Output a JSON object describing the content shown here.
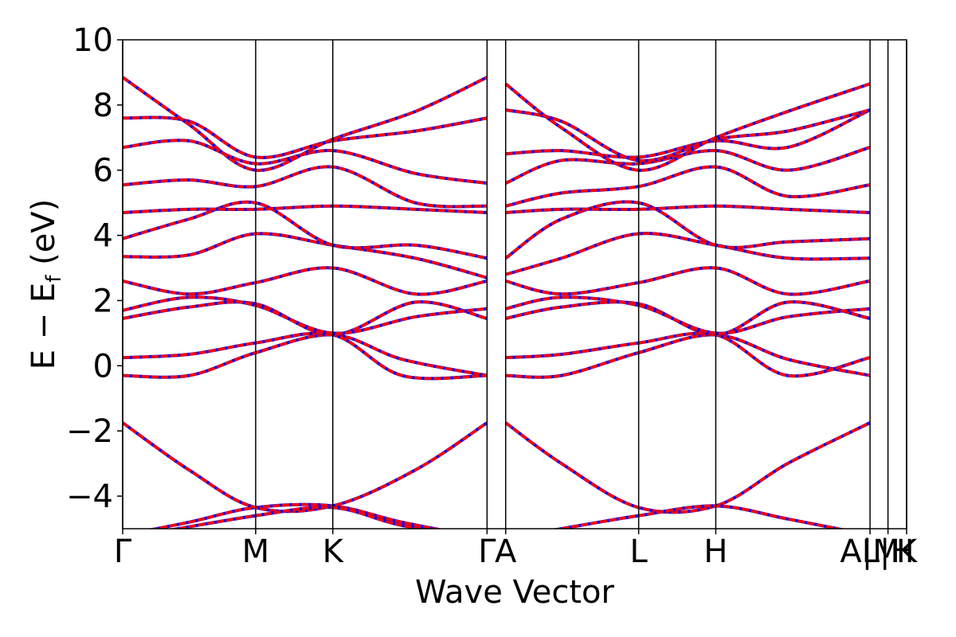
{
  "chart_data": {
    "type": "line",
    "title": "",
    "xlabel": "Wave Vector",
    "ylabel_parts": {
      "main": "E − E",
      "sub": "f",
      "unit": " (eV)"
    },
    "ylim": [
      -5,
      10
    ],
    "y_ticks": [
      {
        "value": -4,
        "label": "−4"
      },
      {
        "value": -2,
        "label": "−2"
      },
      {
        "value": 0,
        "label": "0"
      },
      {
        "value": 2,
        "label": "2"
      },
      {
        "value": 4,
        "label": "4"
      },
      {
        "value": 6,
        "label": "6"
      },
      {
        "value": 8,
        "label": "8"
      },
      {
        "value": 10,
        "label": "10"
      }
    ],
    "kpath_positions": [
      0,
      1,
      1.58,
      2.74,
      2.88,
      3.88,
      4.46,
      5.62,
      5.755,
      5.895
    ],
    "kpath_labels": [
      {
        "pos": 0,
        "label": "Γ"
      },
      {
        "pos": 1,
        "label": "M"
      },
      {
        "pos": 1.58,
        "label": "K"
      },
      {
        "pos": 2.74,
        "label": "Γ"
      },
      {
        "pos": 2.88,
        "label": "A"
      },
      {
        "pos": 3.88,
        "label": "L"
      },
      {
        "pos": 4.46,
        "label": "H"
      },
      {
        "pos": 5.62,
        "label": "A"
      },
      {
        "pos": 5.62,
        "label": "M"
      },
      {
        "pos": 5.755,
        "label": "L"
      },
      {
        "pos": 5.755,
        "label": "H"
      },
      {
        "pos": 5.895,
        "label": "K"
      }
    ],
    "grid": false,
    "legend": "none",
    "colors": {
      "band_primary": "#ff0000",
      "band_secondary": "#0000ff",
      "kpath_line": "#000000"
    },
    "series": [
      {
        "x": [
          0,
          0.5,
          1,
          1.58,
          2.1,
          2.74
        ],
        "values": [
          -5.2,
          -4.8,
          -4.35,
          -4.3,
          -4.8,
          -5.3
        ]
      },
      {
        "x": [
          0,
          0.5,
          1,
          1.58,
          2.2,
          2.74
        ],
        "values": [
          -1.75,
          -3.2,
          -4.35,
          -4.3,
          -3.2,
          -1.75
        ]
      },
      {
        "x": [
          0,
          1,
          1.58,
          2.1,
          2.74
        ],
        "values": [
          -5.3,
          -4.6,
          -4.35,
          -4.9,
          -5.3
        ]
      },
      {
        "x": [
          0,
          0.5,
          1,
          1.58,
          2.1,
          2.74
        ],
        "values": [
          -0.3,
          -0.3,
          0.4,
          0.95,
          0.2,
          -0.3
        ]
      },
      {
        "x": [
          0,
          0.5,
          1,
          1.58,
          2.1,
          2.74
        ],
        "values": [
          0.25,
          0.35,
          0.7,
          0.95,
          -0.3,
          -0.3
        ]
      },
      {
        "x": [
          0,
          0.5,
          1,
          1.58,
          2.2,
          2.74
        ],
        "values": [
          1.45,
          1.8,
          1.9,
          0.95,
          1.95,
          1.45
        ]
      },
      {
        "x": [
          0,
          0.5,
          1,
          1.58,
          2.2,
          2.74
        ],
        "values": [
          1.7,
          2.1,
          1.85,
          1.0,
          1.5,
          1.75
        ]
      },
      {
        "x": [
          0,
          0.5,
          1,
          1.58,
          2.2,
          2.74
        ],
        "values": [
          2.6,
          2.2,
          2.55,
          3.0,
          2.2,
          2.6
        ]
      },
      {
        "x": [
          0,
          0.5,
          1,
          1.58,
          2.2,
          2.74
        ],
        "values": [
          3.35,
          3.4,
          4.05,
          3.7,
          3.3,
          2.7
        ]
      },
      {
        "x": [
          0,
          0.5,
          1,
          1.58,
          2.2,
          2.74
        ],
        "values": [
          3.9,
          4.5,
          5.0,
          3.7,
          3.7,
          3.3
        ]
      },
      {
        "x": [
          0,
          0.5,
          1,
          1.58,
          2.2,
          2.74
        ],
        "values": [
          4.7,
          4.8,
          4.8,
          4.9,
          4.8,
          4.7
        ]
      },
      {
        "x": [
          0,
          0.5,
          1,
          1.58,
          2.2,
          2.74
        ],
        "values": [
          5.55,
          5.7,
          5.5,
          6.1,
          5.0,
          4.9
        ]
      },
      {
        "x": [
          0,
          0.5,
          1,
          1.58,
          2.2,
          2.74
        ],
        "values": [
          6.7,
          6.9,
          6.2,
          6.6,
          5.9,
          5.6
        ]
      },
      {
        "x": [
          0,
          0.5,
          1,
          1.58,
          2.2,
          2.74
        ],
        "values": [
          7.6,
          7.5,
          6.4,
          6.9,
          7.2,
          7.6
        ]
      },
      {
        "x": [
          0,
          0.5,
          1,
          1.58,
          2.2,
          2.74
        ],
        "values": [
          8.85,
          7.4,
          6.0,
          6.95,
          7.8,
          8.85
        ]
      },
      {
        "x": [
          2.88,
          3.3,
          3.88,
          4.46,
          5.0,
          5.62
        ],
        "values": [
          -1.75,
          -3.0,
          -4.35,
          -4.3,
          -3.0,
          -1.75
        ]
      },
      {
        "x": [
          2.88,
          3.3,
          3.88,
          4.46,
          5.0,
          5.62
        ],
        "values": [
          -5.3,
          -5.0,
          -4.6,
          -4.3,
          -4.7,
          -5.2
        ]
      },
      {
        "x": [
          2.88,
          3.3,
          3.88,
          4.46,
          5.0,
          5.62
        ],
        "values": [
          -0.3,
          -0.3,
          0.4,
          0.95,
          0.2,
          -0.3
        ]
      },
      {
        "x": [
          2.88,
          3.3,
          3.88,
          4.46,
          5.0,
          5.62
        ],
        "values": [
          0.25,
          0.35,
          0.7,
          0.95,
          -0.3,
          0.25
        ]
      },
      {
        "x": [
          2.88,
          3.3,
          3.88,
          4.46,
          5.0,
          5.62
        ],
        "values": [
          1.45,
          1.8,
          1.9,
          0.95,
          1.95,
          1.45
        ]
      },
      {
        "x": [
          2.88,
          3.3,
          3.88,
          4.46,
          5.0,
          5.62
        ],
        "values": [
          1.75,
          2.1,
          1.85,
          1.0,
          1.5,
          1.75
        ]
      },
      {
        "x": [
          2.88,
          3.3,
          3.88,
          4.46,
          5.0,
          5.62
        ],
        "values": [
          2.6,
          2.2,
          2.55,
          3.0,
          2.2,
          2.6
        ]
      },
      {
        "x": [
          2.88,
          3.3,
          3.88,
          4.46,
          5.0,
          5.62
        ],
        "values": [
          2.8,
          3.3,
          4.05,
          3.7,
          3.3,
          3.3
        ]
      },
      {
        "x": [
          2.88,
          3.3,
          3.88,
          4.46,
          5.0,
          5.62
        ],
        "values": [
          3.3,
          4.5,
          5.0,
          3.7,
          3.8,
          3.9
        ]
      },
      {
        "x": [
          2.88,
          3.3,
          3.88,
          4.46,
          5.0,
          5.62
        ],
        "values": [
          4.7,
          4.8,
          4.8,
          4.9,
          4.8,
          4.7
        ]
      },
      {
        "x": [
          2.88,
          3.3,
          3.88,
          4.46,
          5.0,
          5.62
        ],
        "values": [
          4.9,
          5.3,
          5.5,
          6.1,
          5.2,
          5.55
        ]
      },
      {
        "x": [
          2.88,
          3.3,
          3.88,
          4.46,
          5.0,
          5.62
        ],
        "values": [
          5.6,
          6.3,
          6.2,
          6.6,
          6.0,
          6.7
        ]
      },
      {
        "x": [
          2.88,
          3.3,
          3.88,
          4.46,
          5.0,
          5.62
        ],
        "values": [
          6.5,
          6.6,
          6.4,
          6.9,
          6.7,
          7.85
        ]
      },
      {
        "x": [
          2.88,
          3.3,
          3.88,
          4.46,
          5.0,
          5.62
        ],
        "values": [
          7.85,
          7.5,
          6.3,
          6.95,
          7.2,
          7.85
        ]
      },
      {
        "x": [
          2.88,
          3.3,
          3.88,
          4.46,
          5.0,
          5.62
        ],
        "values": [
          8.65,
          7.3,
          6.0,
          7.0,
          7.8,
          8.65
        ]
      }
    ]
  }
}
